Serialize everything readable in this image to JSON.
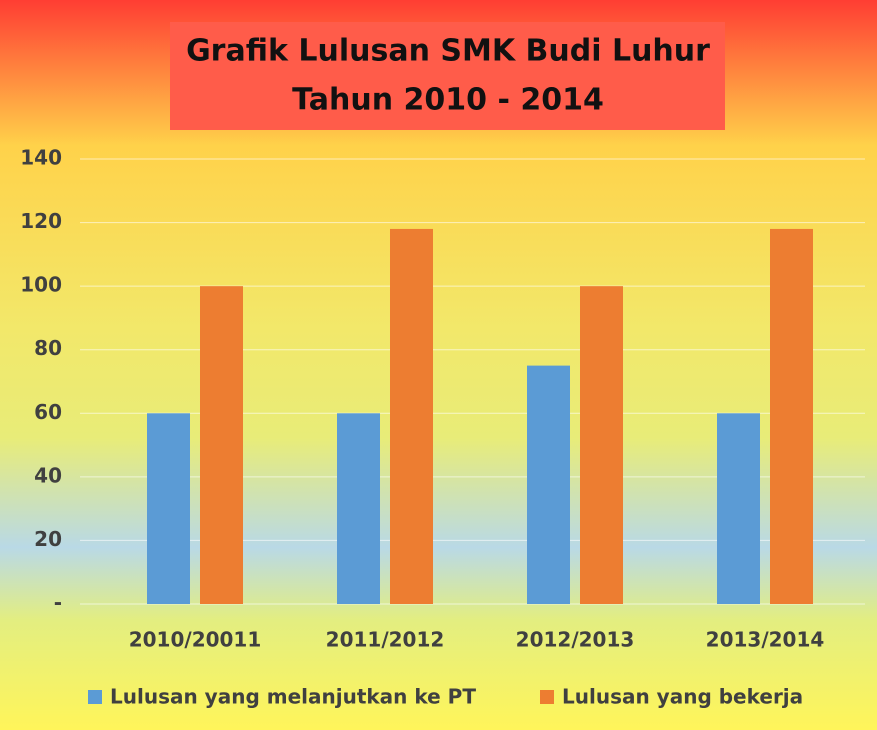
{
  "chart_data": {
    "type": "bar",
    "title": [
      "Grafik Lulusan SMK Budi Luhur",
      "Tahun 2010 - 2014"
    ],
    "categories": [
      "2010/20011",
      "2011/2012",
      "2012/2013",
      "2013/2014"
    ],
    "series": [
      {
        "name": "Lulusan yang melanjutkan ke PT",
        "color": "#5b9bd5",
        "values": [
          60,
          60,
          75,
          60
        ]
      },
      {
        "name": "Lulusan yang bekerja",
        "color": "#ed7d31",
        "values": [
          100,
          118,
          100,
          118
        ]
      }
    ],
    "ylim": [
      0,
      140
    ],
    "yticks": [
      {
        "value": 0,
        "label": "-"
      },
      20,
      40,
      60,
      80,
      100,
      120,
      140
    ],
    "grid": true,
    "legend": "bottom"
  }
}
